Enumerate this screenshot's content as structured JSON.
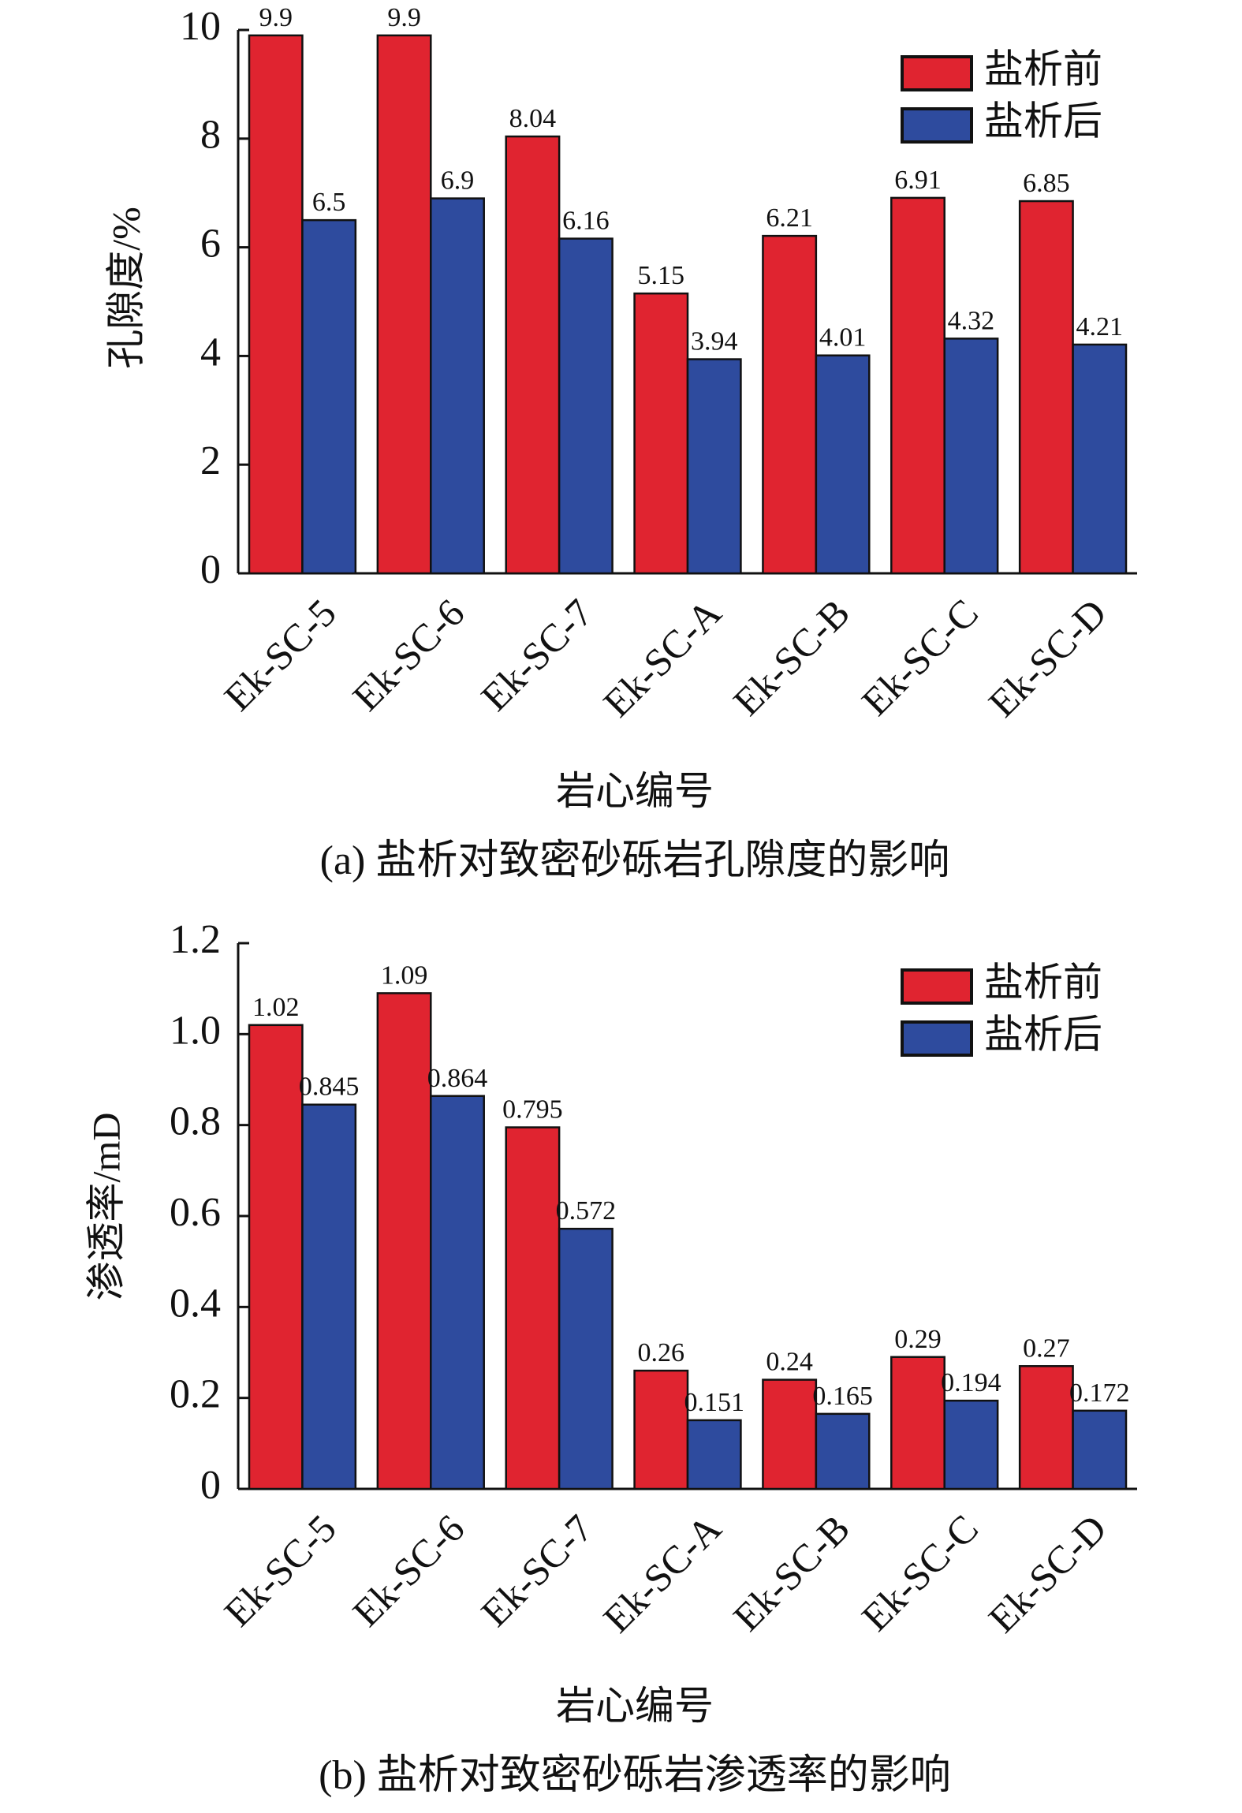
{
  "chart_data": [
    {
      "type": "bar",
      "categories": [
        "Ek-SC-5",
        "Ek-SC-6",
        "Ek-SC-7",
        "Ek-SC-A",
        "Ek-SC-B",
        "Ek-SC-C",
        "Ek-SC-D"
      ],
      "series": [
        {
          "name": "盐析前",
          "color": "#e02430",
          "values": [
            9.9,
            9.9,
            8.04,
            5.15,
            6.21,
            6.91,
            6.85
          ],
          "labels": [
            "9.9",
            "9.9",
            "8.04",
            "5.15",
            "6.21",
            "6.91",
            "6.85"
          ]
        },
        {
          "name": "盐析后",
          "color": "#2e4b9e",
          "values": [
            6.5,
            6.9,
            6.16,
            3.94,
            4.01,
            4.32,
            4.21
          ],
          "labels": [
            "6.5",
            "6.9",
            "6.16",
            "3.94",
            "4.01",
            "4.32",
            "4.21"
          ]
        }
      ],
      "ylabel": "孔隙度/%",
      "xlabel": "岩心编号",
      "ylim": [
        0,
        10
      ],
      "yticks": [
        "0",
        "2",
        "4",
        "6",
        "8",
        "10"
      ],
      "legend": "top-right",
      "grid": false,
      "caption": "(a) 盐析对致密砂砾岩孔隙度的影响"
    },
    {
      "type": "bar",
      "categories": [
        "Ek-SC-5",
        "Ek-SC-6",
        "Ek-SC-7",
        "Ek-SC-A",
        "Ek-SC-B",
        "Ek-SC-C",
        "Ek-SC-D"
      ],
      "series": [
        {
          "name": "盐析前",
          "color": "#e02430",
          "values": [
            1.02,
            1.09,
            0.795,
            0.26,
            0.24,
            0.29,
            0.27
          ],
          "labels": [
            "1.02",
            "1.09",
            "0.795",
            "0.26",
            "0.24",
            "0.29",
            "0.27"
          ]
        },
        {
          "name": "盐析后",
          "color": "#2e4b9e",
          "values": [
            0.845,
            0.864,
            0.572,
            0.151,
            0.165,
            0.194,
            0.172
          ],
          "labels": [
            "0.845",
            "0.864",
            "0.572",
            "0.151",
            "0.165",
            "0.194",
            "0.172"
          ]
        }
      ],
      "ylabel": "渗透率/mD",
      "xlabel": "岩心编号",
      "ylim": [
        0,
        1.2
      ],
      "yticks": [
        "0",
        "0.2",
        "0.4",
        "0.6",
        "0.8",
        "1.0",
        "1.2"
      ],
      "legend": "top-right",
      "grid": false,
      "caption": "(b) 盐析对致密砂砾岩渗透率的影响"
    }
  ]
}
